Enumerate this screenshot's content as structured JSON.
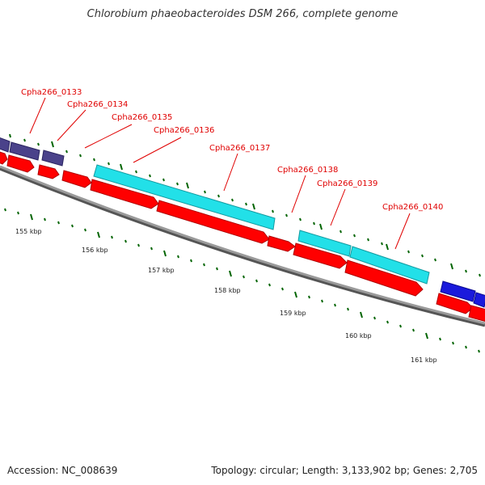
{
  "title": "Chlorobium phaeobacteroides DSM 266, complete genome",
  "accession": "Accession: NC_008639",
  "summary": "Topology: circular; Length: 3,133,902 bp; Genes: 2,705",
  "colors": {
    "backbone": "#9a9a9a",
    "backbone_shadow": "#555555",
    "cds": "#ff0000",
    "cds_dark": "#b00000",
    "rna": "#22e0e8",
    "rna_dark": "#129aa0",
    "gene_slate": "#4a428a",
    "gene_blue": "#1a1adc",
    "tick": "#006400",
    "gene_label": "#e00000",
    "leader": "#e00000"
  },
  "gene_labels": [
    "Cpha266_0133",
    "Cpha266_0134",
    "Cpha266_0135",
    "Cpha266_0136",
    "Cpha266_0137",
    "Cpha266_0138",
    "Cpha266_0139",
    "Cpha266_0140"
  ],
  "scale_labels": [
    "155 kbp",
    "156 kbp",
    "157 kbp",
    "158 kbp",
    "159 kbp",
    "160 kbp",
    "161 kbp"
  ]
}
